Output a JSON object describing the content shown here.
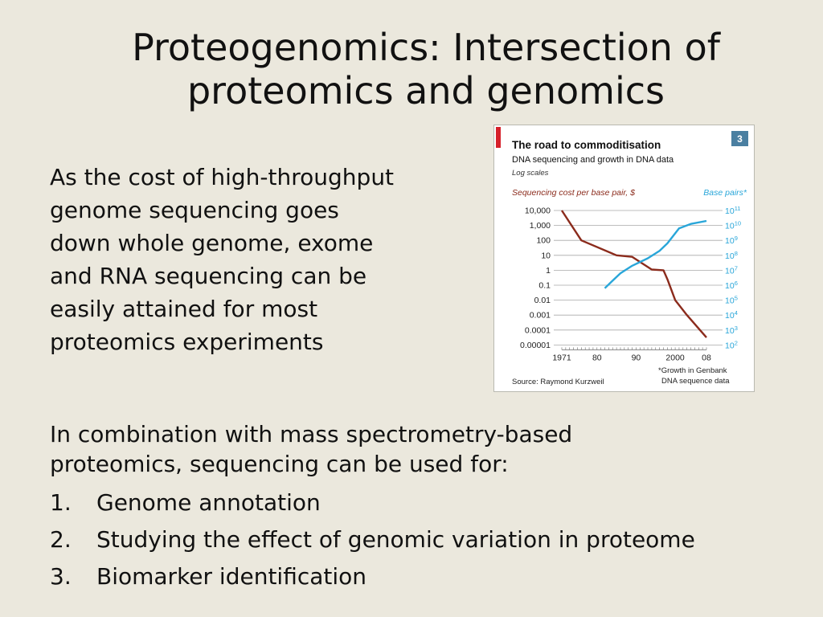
{
  "slide": {
    "title_lines": [
      "Proteogenomics: Intersection of",
      "proteomics and genomics"
    ],
    "paragraph_lines": [
      "As the cost of high-throughput",
      "genome sequencing goes",
      "down whole genome, exome",
      "and RNA sequencing can be",
      "easily attained for most",
      "proteomics experiments"
    ],
    "lower_intro_lines": [
      "In combination with mass spectrometry-based",
      "proteomics, sequencing can be used for:"
    ],
    "list": [
      {
        "num": "1.",
        "text": "Genome annotation"
      },
      {
        "num": "2.",
        "text": "Studying the effect of genomic variation in proteome"
      },
      {
        "num": "3.",
        "text": "Biomarker identification"
      }
    ]
  },
  "chart_data": {
    "type": "line",
    "title": "The road to commoditisation",
    "subtitle": "DNA sequencing and growth in DNA data",
    "scale_note": "Log scales",
    "badge": "3",
    "source": "Source: Raymond Kurzweil",
    "footnote_lines": [
      "*Growth in Genbank",
      "DNA sequence data"
    ],
    "accent_color": "#d6202a",
    "left_axis": {
      "label": "Sequencing cost per base pair, $",
      "ticks": [
        "10,000",
        "1,000",
        "100",
        "10",
        "1",
        "0.1",
        "0.01",
        "0.001",
        "0.0001",
        "0.00001"
      ],
      "exponents": [
        4,
        3,
        2,
        1,
        0,
        -1,
        -2,
        -3,
        -4,
        -5
      ],
      "color": "#8b2b1c"
    },
    "right_axis": {
      "label": "Base pairs*",
      "ticks": [
        {
          "base": "10",
          "exp": "11",
          "value": 11
        },
        {
          "base": "10",
          "exp": "10",
          "value": 10
        },
        {
          "base": "10",
          "exp": "9",
          "value": 9
        },
        {
          "base": "10",
          "exp": "8",
          "value": 8
        },
        {
          "base": "10",
          "exp": "7",
          "value": 7
        },
        {
          "base": "10",
          "exp": "6",
          "value": 6
        },
        {
          "base": "10",
          "exp": "5",
          "value": 5
        },
        {
          "base": "10",
          "exp": "4",
          "value": 4
        },
        {
          "base": "10",
          "exp": "3",
          "value": 3
        },
        {
          "base": "10",
          "exp": "2",
          "value": 2
        }
      ],
      "color": "#29a6d9"
    },
    "x_axis": {
      "range": [
        1971,
        2008
      ],
      "tick_labels": [
        {
          "year": 1971,
          "label": "1971"
        },
        {
          "year": 1980,
          "label": "80"
        },
        {
          "year": 1990,
          "label": "90"
        },
        {
          "year": 2000,
          "label": "2000"
        },
        {
          "year": 2008,
          "label": "08"
        }
      ]
    },
    "series": [
      {
        "name": "Sequencing cost per base pair, $",
        "axis": "left",
        "color": "#8b2b1c",
        "points": [
          [
            1971,
            4.0
          ],
          [
            1976,
            2.0
          ],
          [
            1985,
            1.0
          ],
          [
            1989,
            0.9
          ],
          [
            1994,
            0.05
          ],
          [
            1997,
            0.0
          ],
          [
            1998,
            -0.6
          ],
          [
            2000,
            -2.0
          ],
          [
            2003,
            -3.0
          ],
          [
            2008,
            -4.5
          ]
        ]
      },
      {
        "name": "Base pairs*",
        "axis": "right",
        "color": "#29a6d9",
        "points": [
          [
            1982,
            5.8
          ],
          [
            1984,
            6.3
          ],
          [
            1986,
            6.8
          ],
          [
            1989,
            7.3
          ],
          [
            1993,
            7.8
          ],
          [
            1996,
            8.3
          ],
          [
            1998,
            8.8
          ],
          [
            1999.5,
            9.3
          ],
          [
            2001,
            9.8
          ],
          [
            2004,
            10.1
          ],
          [
            2008,
            10.3
          ]
        ]
      }
    ]
  }
}
